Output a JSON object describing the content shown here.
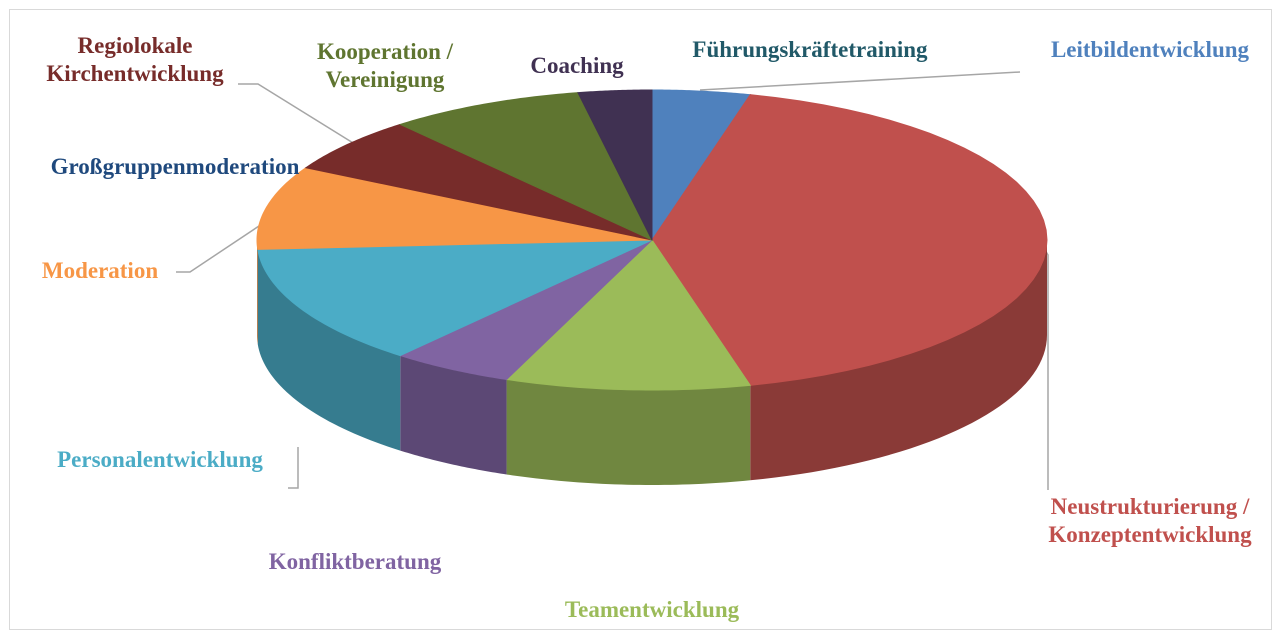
{
  "chart_data": {
    "type": "pie3d",
    "categories": [
      "Leitbildentwicklung",
      "Neustrukturierung / Konzeptentwicklung",
      "Teamentwicklung",
      "Konfliktberatung",
      "Personalentwicklung",
      "Moderation",
      "Großgruppenmoderation",
      "Regiolokale Kirchentwicklung",
      "Kooperation / Vereinigung",
      "Coaching",
      "Führungskräftetraining"
    ],
    "values": [
      4,
      42,
      10,
      5,
      13,
      9,
      0,
      6,
      8,
      3,
      0
    ],
    "colors": [
      "#4f81bd",
      "#c0504d",
      "#9bbb59",
      "#8064a2",
      "#4bacc6",
      "#f79646",
      "#1f497d",
      "#772c2a",
      "#5f7530",
      "#403152",
      "#215968"
    ]
  }
}
